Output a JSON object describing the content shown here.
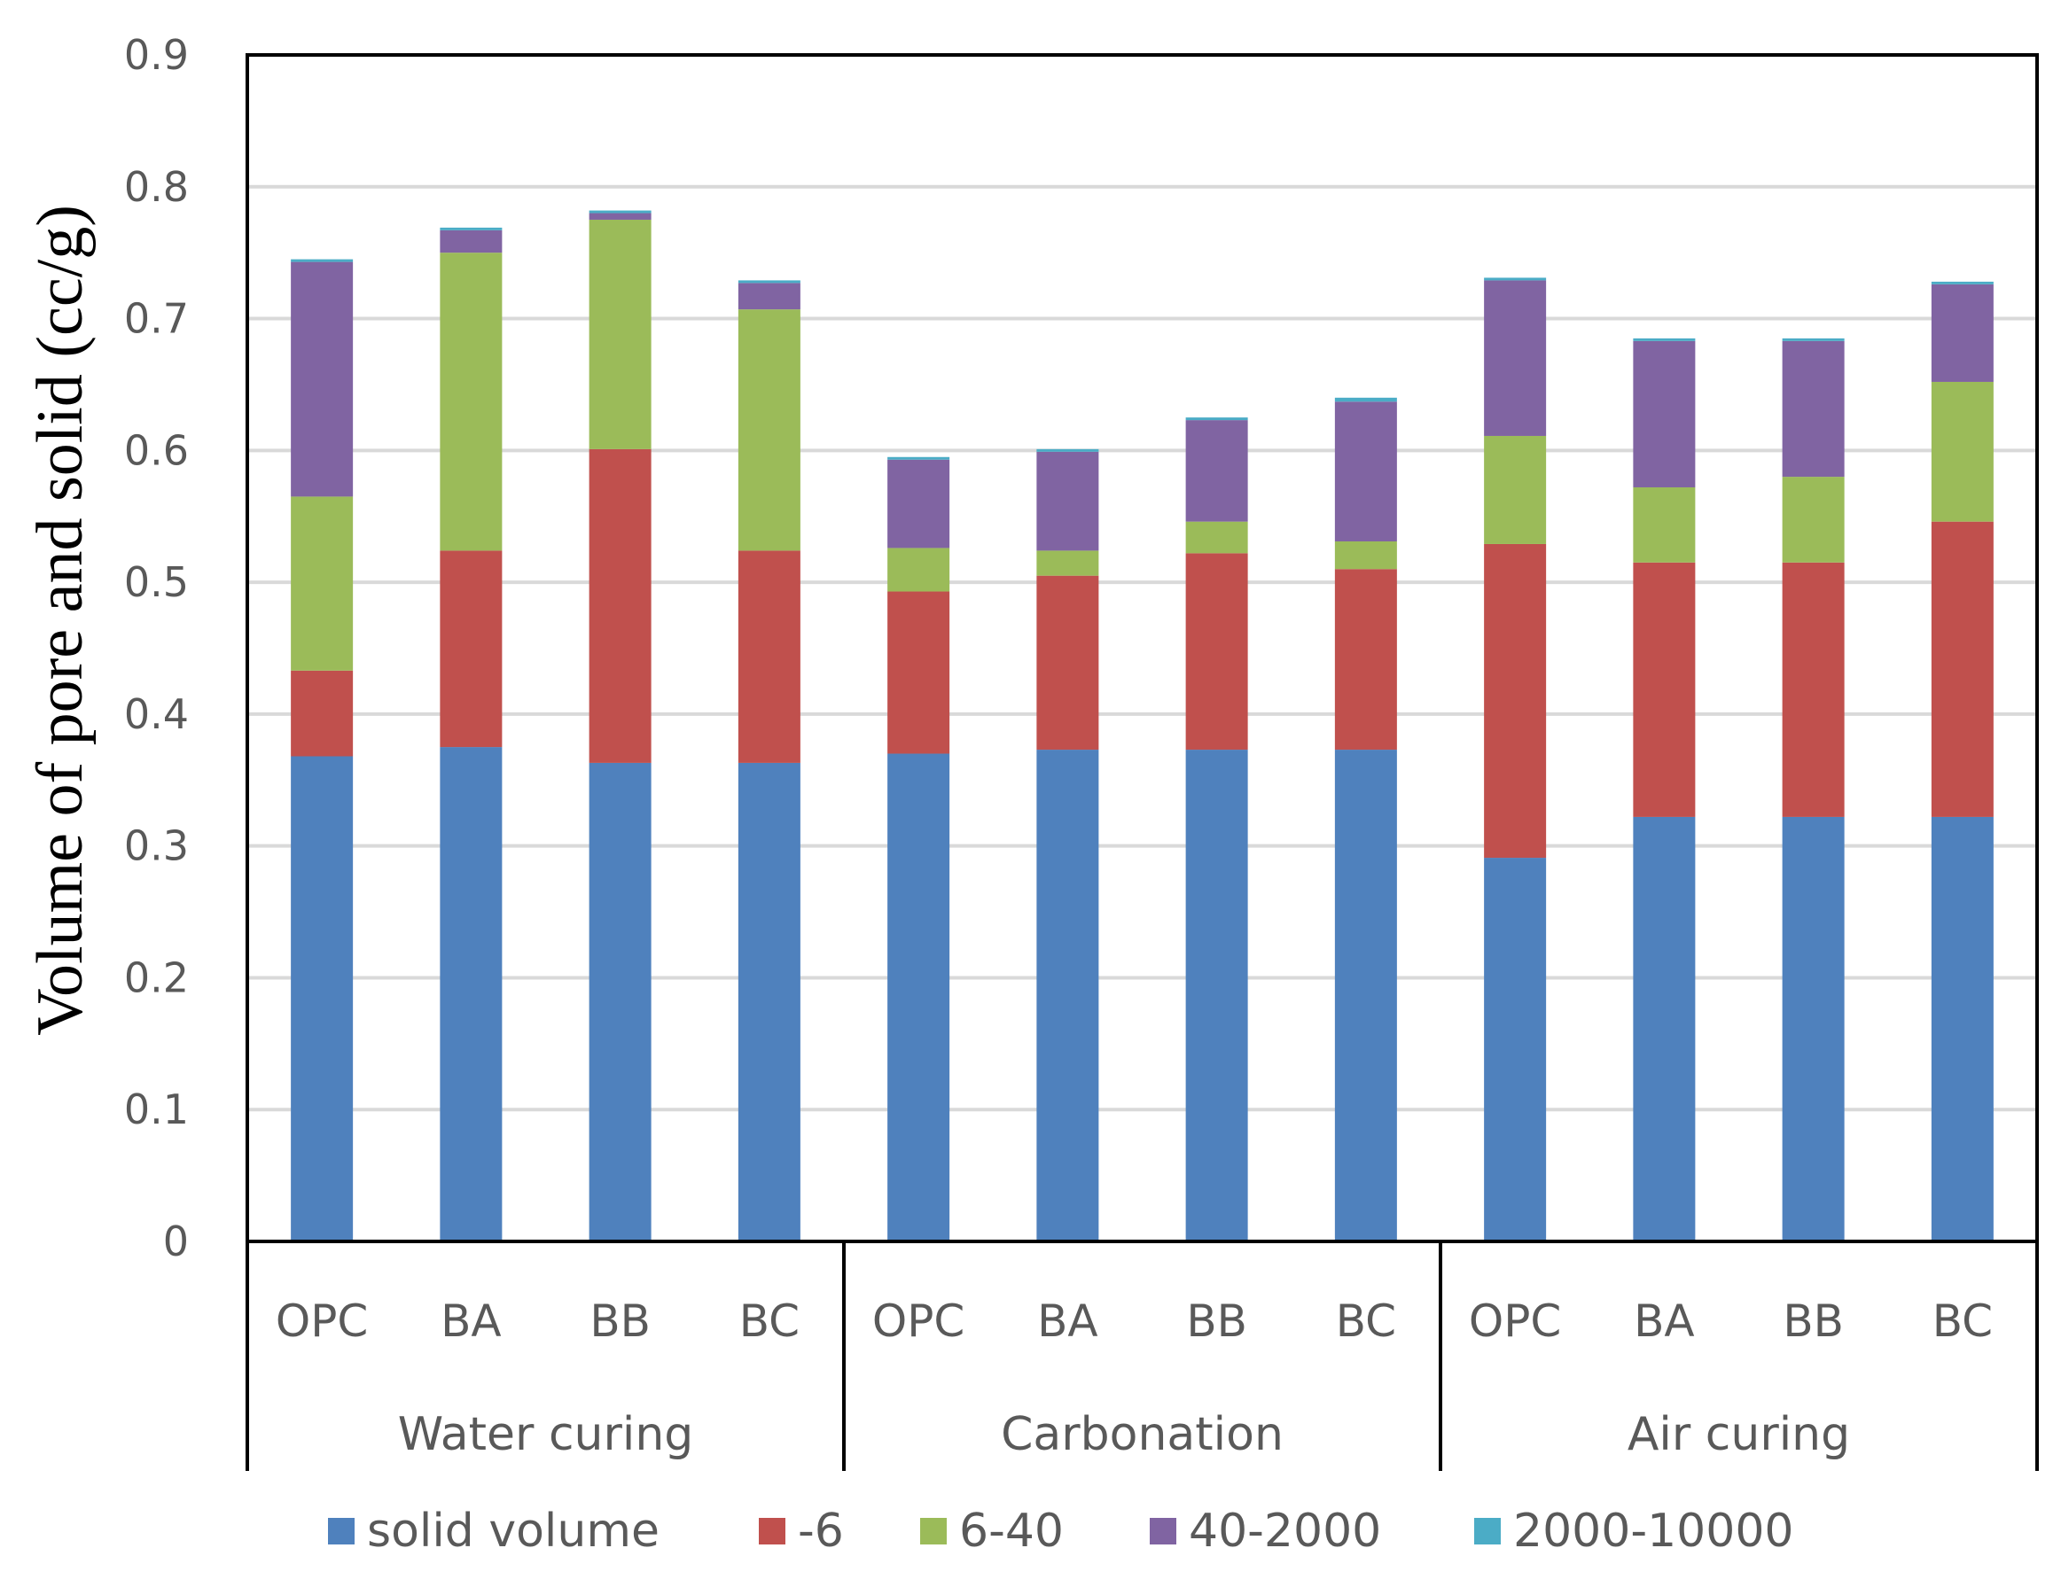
{
  "chart_data": {
    "type": "bar",
    "stacked": true,
    "title": "",
    "xlabel": "",
    "ylabel": "Volume of pore and solid (cc/g)",
    "ylim": [
      0,
      0.9
    ],
    "yticks": [
      "0",
      "0.1",
      "0.2",
      "0.3",
      "0.4",
      "0.5",
      "0.6",
      "0.7",
      "0.8",
      "0.9"
    ],
    "grid": true,
    "legend_position": "bottom",
    "groups": [
      {
        "label": "Water curing",
        "categories": [
          "OPC",
          "BA",
          "BB",
          "BC"
        ]
      },
      {
        "label": "Carbonation",
        "categories": [
          "OPC",
          "BA",
          "BB",
          "BC"
        ]
      },
      {
        "label": "Air curing",
        "categories": [
          "OPC",
          "BA",
          "BB",
          "BC"
        ]
      }
    ],
    "series": [
      {
        "name": "solid volume",
        "color": "#4F81BD",
        "values": [
          0.368,
          0.375,
          0.363,
          0.363,
          0.37,
          0.373,
          0.373,
          0.373,
          0.291,
          0.322,
          0.322,
          0.322
        ]
      },
      {
        "name": "-6",
        "color": "#C0504D",
        "values": [
          0.065,
          0.149,
          0.238,
          0.161,
          0.123,
          0.132,
          0.149,
          0.137,
          0.238,
          0.193,
          0.193,
          0.224
        ]
      },
      {
        "name": "6-40",
        "color": "#9BBB59",
        "values": [
          0.132,
          0.226,
          0.174,
          0.183,
          0.033,
          0.019,
          0.024,
          0.021,
          0.082,
          0.057,
          0.065,
          0.106
        ]
      },
      {
        "name": "40-2000",
        "color": "#8064A2",
        "values": [
          0.178,
          0.017,
          0.005,
          0.02,
          0.067,
          0.075,
          0.077,
          0.106,
          0.118,
          0.111,
          0.103,
          0.074
        ]
      },
      {
        "name": "2000-10000",
        "color": "#4BACC6",
        "values": [
          0.002,
          0.002,
          0.002,
          0.002,
          0.002,
          0.002,
          0.002,
          0.003,
          0.002,
          0.002,
          0.002,
          0.002
        ]
      }
    ]
  }
}
